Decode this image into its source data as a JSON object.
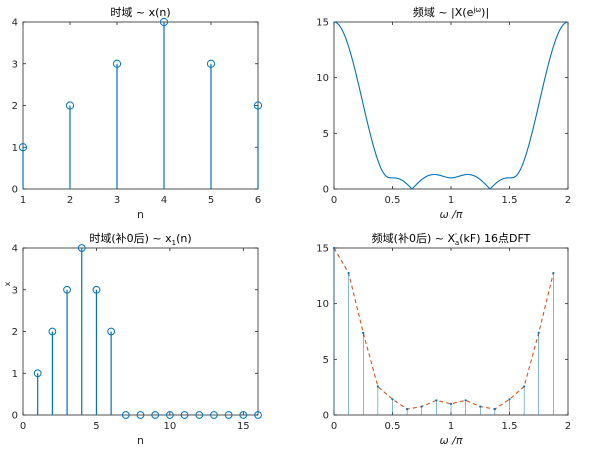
{
  "colors": {
    "series": "#0072BD",
    "envelope": "#D95319",
    "axis": "#262626"
  },
  "chart_data": [
    {
      "type": "stem",
      "title": "时域 ~ x(n)",
      "xlabel": "n",
      "ylabel": "",
      "xlim": [
        1,
        6
      ],
      "ylim": [
        0,
        4
      ],
      "xticks": [
        "1",
        "2",
        "3",
        "4",
        "5",
        "6"
      ],
      "yticks": [
        "0",
        "1",
        "2",
        "3",
        "4"
      ],
      "x": [
        1,
        2,
        3,
        4,
        5,
        6
      ],
      "values": [
        1,
        2,
        3,
        4,
        3,
        2
      ],
      "grid": false
    },
    {
      "type": "line",
      "title": "频域 ~ |X(e^{jω})|",
      "xlabel": "ω /π",
      "ylabel": "",
      "xlim": [
        0,
        2
      ],
      "ylim": [
        0,
        15
      ],
      "xticks": [
        "0",
        "0.5",
        "1",
        "1.5",
        "2"
      ],
      "yticks": [
        "0",
        "5",
        "10",
        "15"
      ],
      "function": "abs(sum_{n=1..6} x(n) e^{-j ω π n})",
      "x_range": [
        0,
        2
      ],
      "samples": 401,
      "grid": false
    },
    {
      "type": "stem",
      "title": "时域(补0后) ~ x_1(n)",
      "xlabel": "n",
      "ylabel": "x",
      "xlim": [
        0,
        16
      ],
      "ylim": [
        0,
        4
      ],
      "xticks": [
        "0",
        "5",
        "10",
        "15"
      ],
      "yticks": [
        "0",
        "1",
        "2",
        "3",
        "4"
      ],
      "x": [
        1,
        2,
        3,
        4,
        5,
        6,
        7,
        8,
        9,
        10,
        11,
        12,
        13,
        14,
        15,
        16
      ],
      "values": [
        1,
        2,
        3,
        4,
        3,
        2,
        0,
        0,
        0,
        0,
        0,
        0,
        0,
        0,
        0,
        0
      ],
      "grid": false
    },
    {
      "type": "stem+line",
      "title": "频域(补0后) ~ X'_a(kF) 16点DFT",
      "xlabel": "ω /π",
      "ylabel": "",
      "xlim": [
        0,
        2
      ],
      "ylim": [
        0,
        15
      ],
      "xticks": [
        "0",
        "0.5",
        "1",
        "1.5",
        "2"
      ],
      "yticks": [
        "0",
        "5",
        "10",
        "15"
      ],
      "x": [
        0,
        0.125,
        0.25,
        0.375,
        0.5,
        0.625,
        0.75,
        0.875,
        1,
        1.125,
        1.25,
        1.375,
        1.5,
        1.625,
        1.75,
        1.875
      ],
      "values": [
        15,
        12.75,
        7.38,
        2.56,
        1.41,
        0.53,
        0.76,
        1.32,
        1.0,
        1.32,
        0.76,
        0.53,
        1.41,
        2.56,
        7.38,
        12.75
      ],
      "envelope": "dashed",
      "grid": false
    }
  ],
  "ui": {
    "titles": [
      {
        "pre": "时域 ~ x(n)",
        "sub": "",
        "sup": "",
        "post": ""
      },
      {
        "pre": "频域 ~ |X(e",
        "sub": "",
        "sup": "jω",
        "post": ")|"
      },
      {
        "pre": "时域(补0后) ~ x",
        "sub": "1",
        "sup": "",
        "post": "(n)"
      },
      {
        "pre": "频域(补0后) ~ X",
        "sub": "a",
        "sup": "'",
        "post": "(kF) 16点DFT"
      }
    ]
  }
}
